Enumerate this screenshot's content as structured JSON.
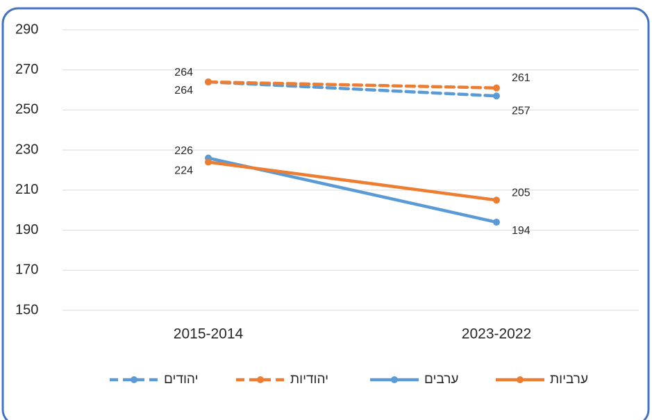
{
  "chart_data": {
    "type": "line",
    "categories": [
      "2015-2014",
      "2023-2022"
    ],
    "series": [
      {
        "name": "יהודים",
        "color": "#5b9bd5",
        "line_style": "dashed",
        "values": [
          264,
          257
        ]
      },
      {
        "name": "יהודיות",
        "color": "#ed7d31",
        "line_style": "dashed",
        "values": [
          264,
          261
        ]
      },
      {
        "name": "ערבים",
        "color": "#5b9bd5",
        "line_style": "solid",
        "values": [
          226,
          194
        ]
      },
      {
        "name": "ערביות",
        "color": "#ed7d31",
        "line_style": "solid",
        "values": [
          224,
          205
        ]
      }
    ],
    "ylim": [
      150,
      290
    ],
    "yticks": [
      150,
      170,
      190,
      210,
      230,
      250,
      270,
      290
    ],
    "grid": true,
    "legend": "bottom",
    "data_labels": true
  }
}
